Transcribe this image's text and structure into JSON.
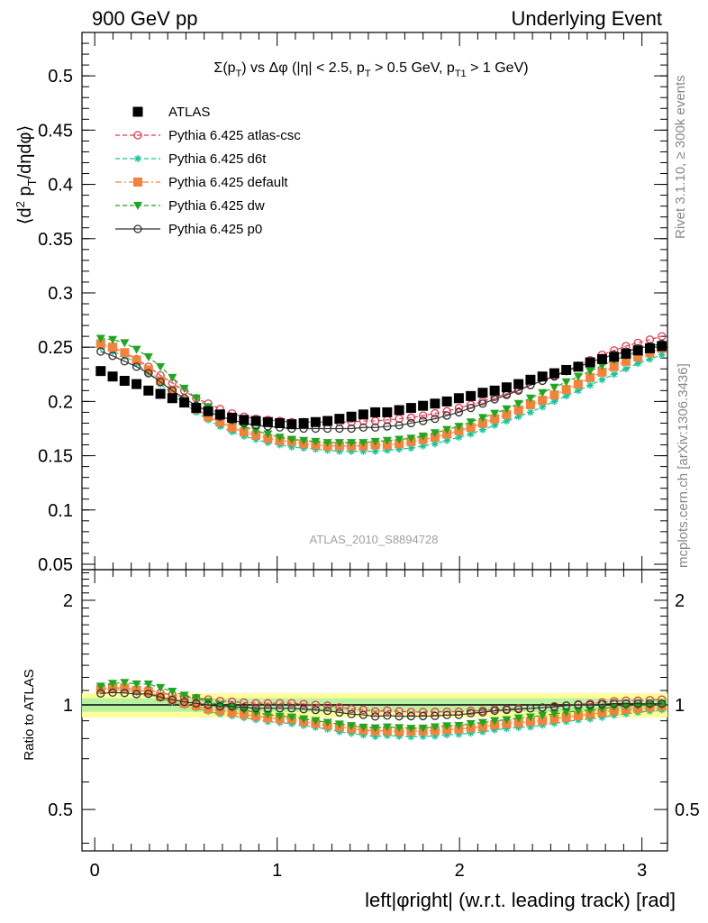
{
  "header": {
    "left": "900 GeV pp",
    "right": "Underlying Event"
  },
  "side_text": {
    "top": "Rivet 3.1.10, ≥ 300k events",
    "bottom": "mcplots.cern.ch [arXiv:1306.3436]"
  },
  "watermark": "ATLAS_2010_S8894728",
  "chart_data": {
    "type": "line",
    "title": "Σ(pT) vs Δφ (|η| < 2.5, pT > 0.5 GeV, pT1 > 1 GeV)",
    "xlabel": "left|φright| (w.r.t. leading track) [rad]",
    "ylabel": "⟨d² pT/dηdφ⟩",
    "ratio_ylabel": "Ratio to ATLAS",
    "xlim": [
      -0.07,
      3.14
    ],
    "ylim": [
      0.045,
      0.54
    ],
    "ratio_ylim": [
      0.38,
      2.45
    ],
    "x_ticks": [
      "0",
      "1",
      "2",
      "3"
    ],
    "y_ticks": [
      "0.05",
      "0.1",
      "0.15",
      "0.2",
      "0.25",
      "0.3",
      "0.35",
      "0.4",
      "0.45",
      "0.5"
    ],
    "ratio_ticks": [
      "0.5",
      "1",
      "2"
    ],
    "legend_position": "top-left",
    "x": [
      0.0327,
      0.0982,
      0.1636,
      0.2291,
      0.2945,
      0.36,
      0.4254,
      0.4909,
      0.5563,
      0.6218,
      0.6872,
      0.7527,
      0.8181,
      0.8836,
      0.949,
      1.0145,
      1.0799,
      1.1454,
      1.2108,
      1.2763,
      1.3417,
      1.4072,
      1.4726,
      1.5381,
      1.6035,
      1.669,
      1.7344,
      1.7999,
      1.8653,
      1.9308,
      1.9962,
      2.0617,
      2.1271,
      2.1926,
      2.258,
      2.3235,
      2.3889,
      2.4544,
      2.5198,
      2.5853,
      2.6507,
      2.7162,
      2.7816,
      2.8471,
      2.9125,
      2.978,
      3.0434,
      3.1089
    ],
    "series": [
      {
        "name": "ATLAS",
        "color": "#000000",
        "marker": "square",
        "line": "none",
        "values": [
          0.228,
          0.223,
          0.219,
          0.216,
          0.21,
          0.207,
          0.203,
          0.199,
          0.194,
          0.191,
          0.188,
          0.185,
          0.183,
          0.182,
          0.181,
          0.18,
          0.179,
          0.18,
          0.181,
          0.182,
          0.184,
          0.186,
          0.188,
          0.19,
          0.19,
          0.192,
          0.194,
          0.196,
          0.198,
          0.2,
          0.203,
          0.205,
          0.208,
          0.21,
          0.213,
          0.216,
          0.22,
          0.223,
          0.226,
          0.229,
          0.232,
          0.236,
          0.239,
          0.241,
          0.244,
          0.247,
          0.249,
          0.251
        ]
      },
      {
        "name": "Pythia 6.425 atlas-csc",
        "color": "#e8354f",
        "marker": "circle-open",
        "line": "dashed",
        "values": [
          0.252,
          0.249,
          0.245,
          0.239,
          0.232,
          0.224,
          0.217,
          0.21,
          0.203,
          0.198,
          0.193,
          0.189,
          0.186,
          0.184,
          0.183,
          0.182,
          0.181,
          0.181,
          0.181,
          0.181,
          0.181,
          0.181,
          0.182,
          0.182,
          0.183,
          0.184,
          0.185,
          0.187,
          0.189,
          0.191,
          0.194,
          0.197,
          0.2,
          0.204,
          0.207,
          0.211,
          0.215,
          0.219,
          0.224,
          0.228,
          0.233,
          0.238,
          0.243,
          0.247,
          0.251,
          0.254,
          0.257,
          0.26
        ]
      },
      {
        "name": "Pythia 6.425 d6t",
        "color": "#18c49a",
        "marker": "asterisk",
        "line": "dashed",
        "values": [
          0.25,
          0.246,
          0.242,
          0.235,
          0.226,
          0.216,
          0.207,
          0.198,
          0.19,
          0.183,
          0.177,
          0.172,
          0.168,
          0.165,
          0.162,
          0.16,
          0.158,
          0.157,
          0.156,
          0.155,
          0.154,
          0.154,
          0.154,
          0.154,
          0.155,
          0.156,
          0.157,
          0.159,
          0.161,
          0.164,
          0.167,
          0.17,
          0.174,
          0.178,
          0.182,
          0.186,
          0.19,
          0.195,
          0.2,
          0.205,
          0.21,
          0.215,
          0.22,
          0.225,
          0.23,
          0.235,
          0.239,
          0.243
        ]
      },
      {
        "name": "Pythia 6.425 default",
        "color": "#f5823a",
        "marker": "square",
        "line": "dashdot",
        "values": [
          0.253,
          0.25,
          0.245,
          0.238,
          0.229,
          0.219,
          0.21,
          0.201,
          0.193,
          0.186,
          0.181,
          0.176,
          0.172,
          0.169,
          0.166,
          0.164,
          0.163,
          0.161,
          0.16,
          0.159,
          0.159,
          0.159,
          0.159,
          0.16,
          0.16,
          0.161,
          0.163,
          0.165,
          0.167,
          0.17,
          0.173,
          0.176,
          0.18,
          0.184,
          0.188,
          0.192,
          0.197,
          0.201,
          0.206,
          0.211,
          0.216,
          0.222,
          0.227,
          0.232,
          0.237,
          0.241,
          0.245,
          0.249
        ]
      },
      {
        "name": "Pythia 6.425 dw",
        "color": "#1fa81f",
        "marker": "triangle-down",
        "line": "dashed",
        "values": [
          0.258,
          0.257,
          0.254,
          0.248,
          0.241,
          0.232,
          0.222,
          0.212,
          0.203,
          0.195,
          0.188,
          0.182,
          0.177,
          0.173,
          0.17,
          0.167,
          0.165,
          0.164,
          0.163,
          0.162,
          0.162,
          0.162,
          0.162,
          0.163,
          0.164,
          0.165,
          0.166,
          0.168,
          0.171,
          0.174,
          0.177,
          0.181,
          0.185,
          0.189,
          0.193,
          0.198,
          0.203,
          0.208,
          0.213,
          0.218,
          0.223,
          0.228,
          0.233,
          0.238,
          0.242,
          0.246,
          0.249,
          0.252
        ]
      },
      {
        "name": "Pythia 6.425 p0",
        "color": "#333333",
        "marker": "circle-open",
        "line": "solid",
        "values": [
          0.246,
          0.242,
          0.237,
          0.232,
          0.226,
          0.218,
          0.21,
          0.203,
          0.196,
          0.191,
          0.186,
          0.183,
          0.18,
          0.178,
          0.177,
          0.176,
          0.175,
          0.175,
          0.175,
          0.175,
          0.175,
          0.175,
          0.176,
          0.176,
          0.177,
          0.178,
          0.18,
          0.182,
          0.184,
          0.187,
          0.19,
          0.194,
          0.198,
          0.202,
          0.206,
          0.21,
          0.215,
          0.219,
          0.223,
          0.228,
          0.232,
          0.236,
          0.24,
          0.243,
          0.246,
          0.249,
          0.251,
          0.253
        ]
      }
    ]
  }
}
